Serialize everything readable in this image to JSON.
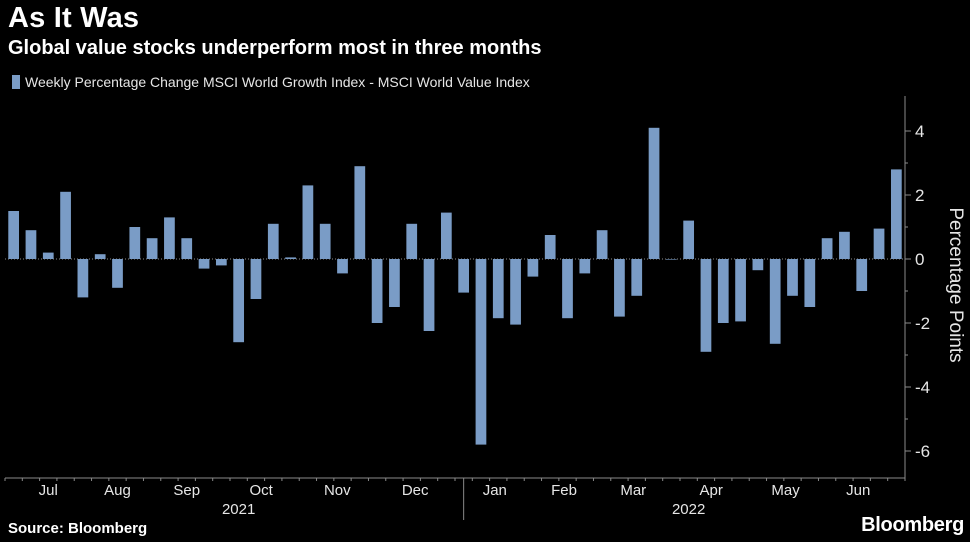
{
  "header": {
    "title": "As It Was",
    "subtitle": "Global value stocks underperform most in three months"
  },
  "footer": {
    "source": "Source: Bloomberg",
    "brand": "Bloomberg"
  },
  "colors": {
    "background": "#000000",
    "bar": "#7a9cc6",
    "axis": "#8a8a8a",
    "text": "#ffffff",
    "muted": "#e6e6e6"
  },
  "chart_data": {
    "type": "bar",
    "title": "As It Was",
    "subtitle": "Global value stocks underperform most in three months",
    "legend": [
      "Weekly Percentage Change MSCI World Growth Index - MSCI World Value  Index"
    ],
    "ylabel": "Percentage Points",
    "xlabel": "",
    "ylim": [
      -6.5,
      5
    ],
    "yticks": [
      4,
      2,
      0,
      -2,
      -4,
      -6
    ],
    "month_labels": [
      {
        "label": "Jul",
        "at": 2.5
      },
      {
        "label": "Aug",
        "at": 6.5
      },
      {
        "label": "Sep",
        "at": 10.5
      },
      {
        "label": "Oct",
        "at": 14.8
      },
      {
        "label": "Nov",
        "at": 19.2
      },
      {
        "label": "Dec",
        "at": 23.7
      },
      {
        "label": "Jan",
        "at": 28.3
      },
      {
        "label": "Feb",
        "at": 32.3
      },
      {
        "label": "Mar",
        "at": 36.3
      },
      {
        "label": "Apr",
        "at": 40.8
      },
      {
        "label": "May",
        "at": 45.1
      },
      {
        "label": "Jun",
        "at": 49.3
      }
    ],
    "year_labels": [
      {
        "label": "2021",
        "at": 13.5
      },
      {
        "label": "2022",
        "at": 39.5
      }
    ],
    "year_divider_at": 26.5,
    "values": [
      1.5,
      0.9,
      0.2,
      2.1,
      -1.2,
      0.15,
      -0.9,
      1.0,
      0.65,
      1.3,
      0.65,
      -0.3,
      -0.2,
      -2.6,
      -1.25,
      1.1,
      0.05,
      2.3,
      1.1,
      -0.45,
      2.9,
      -2.0,
      -1.5,
      1.1,
      -2.25,
      1.45,
      -1.05,
      -5.8,
      -1.85,
      -2.05,
      -0.55,
      0.75,
      -1.85,
      -0.45,
      0.9,
      -1.8,
      -1.15,
      4.1,
      0.0,
      1.2,
      -2.9,
      -2.0,
      -1.95,
      -0.35,
      -2.65,
      -1.15,
      -1.5,
      0.65,
      0.85,
      -1.0,
      0.95,
      2.8
    ]
  }
}
